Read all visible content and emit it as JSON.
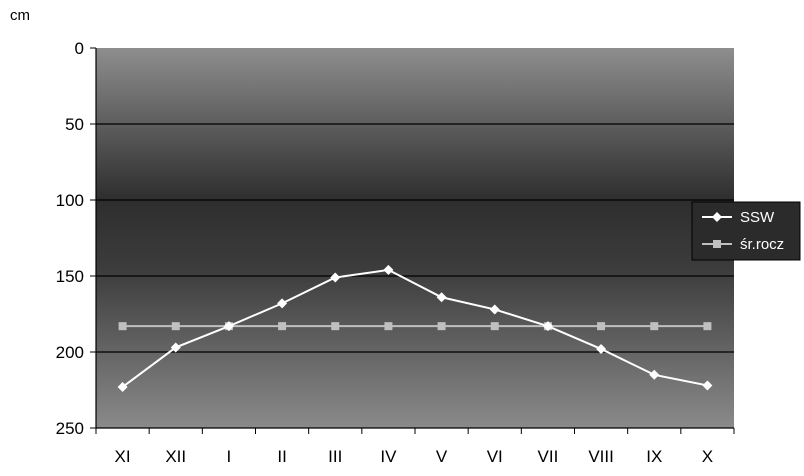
{
  "chart_data": {
    "type": "line",
    "ylabel": "cm",
    "ylim": [
      0,
      250
    ],
    "y_inverted": true,
    "y_ticks": [
      "0",
      "50",
      "100",
      "150",
      "200",
      "250"
    ],
    "categories": [
      "XI",
      "XII",
      "I",
      "II",
      "III",
      "IV",
      "V",
      "VI",
      "VII",
      "VIII",
      "IX",
      "X"
    ],
    "series": [
      {
        "name": "SSW",
        "marker": "diamond",
        "color": "#ffffff",
        "values": [
          223,
          197,
          183,
          168,
          151,
          146,
          164,
          172,
          183,
          198,
          215,
          222
        ]
      },
      {
        "name": "śr.rocz",
        "marker": "square",
        "color": "#c0c0c0",
        "values": [
          183,
          183,
          183,
          183,
          183,
          183,
          183,
          183,
          183,
          183,
          183,
          183
        ]
      }
    ],
    "grid": true,
    "legend_position": "right"
  }
}
